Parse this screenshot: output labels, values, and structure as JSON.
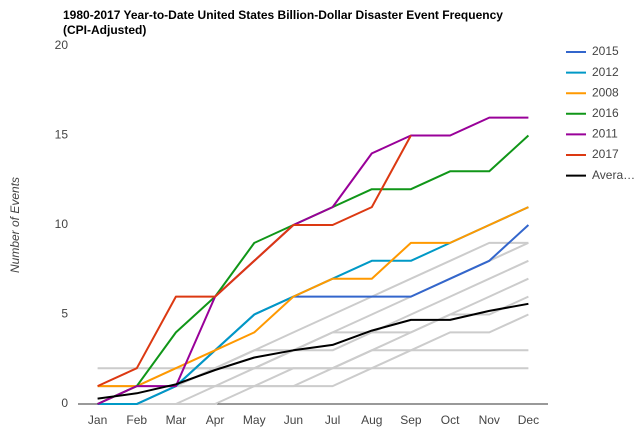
{
  "chart_data": {
    "type": "line",
    "title": [
      "1980-2017 Year-to-Date United States Billion-Dollar Disaster Event Frequency",
      "(CPI-Adjusted)"
    ],
    "y_label": "Number of Events",
    "categories": [
      "Jan",
      "Feb",
      "Mar",
      "Apr",
      "May",
      "Jun",
      "Jul",
      "Aug",
      "Sep",
      "Oct",
      "Nov",
      "Dec"
    ],
    "ylim": [
      0,
      20
    ],
    "yticks": [
      0,
      5,
      10,
      15,
      20
    ],
    "grid": false,
    "legend": "right",
    "background_color": "#cccccc",
    "background_series": [
      [
        0,
        0,
        1,
        1,
        2,
        3,
        4,
        5,
        6,
        7,
        8,
        9
      ],
      [
        0,
        1,
        1,
        2,
        3,
        4,
        5,
        6,
        7,
        8,
        9,
        9
      ],
      [
        1,
        1,
        1,
        2,
        2,
        3,
        3,
        4,
        5,
        6,
        7,
        8
      ],
      [
        0,
        0,
        0,
        1,
        1,
        2,
        2,
        3,
        4,
        5,
        6,
        7
      ],
      [
        2,
        2,
        2,
        2,
        2,
        2,
        2,
        3,
        3,
        3,
        3,
        3
      ],
      [
        0,
        0,
        1,
        1,
        1,
        1,
        1,
        2,
        2,
        2,
        2,
        2
      ],
      [
        0,
        0,
        0,
        0,
        1,
        1,
        2,
        2,
        3,
        4,
        4,
        5
      ],
      [
        1,
        1,
        2,
        2,
        3,
        3,
        4,
        4,
        4,
        5,
        5,
        6
      ]
    ],
    "series": [
      {
        "name": "2015",
        "color": "#3366cc",
        "values": [
          0,
          0,
          1,
          3,
          5,
          6,
          6,
          6,
          6,
          7,
          8,
          10
        ]
      },
      {
        "name": "2012",
        "color": "#0099c6",
        "values": [
          0,
          0,
          1,
          3,
          5,
          6,
          7,
          8,
          8,
          9,
          10,
          11
        ]
      },
      {
        "name": "2008",
        "color": "#ff9900",
        "values": [
          1,
          1,
          2,
          3,
          4,
          6,
          7,
          7,
          9,
          9,
          10,
          11
        ]
      },
      {
        "name": "2016",
        "color": "#109618",
        "values": [
          0,
          1,
          4,
          6,
          9,
          10,
          11,
          12,
          12,
          13,
          13,
          15
        ]
      },
      {
        "name": "2011",
        "color": "#990099",
        "values": [
          0,
          1,
          1,
          6,
          8,
          10,
          11,
          14,
          15,
          15,
          16,
          16
        ]
      },
      {
        "name": "2017",
        "color": "#dc3912",
        "values": [
          1,
          2,
          6,
          6,
          8,
          10,
          10,
          11,
          15,
          null,
          null,
          null
        ]
      },
      {
        "name": "Avera…",
        "color": "#000000",
        "values": [
          0.3,
          0.6,
          1.1,
          1.9,
          2.6,
          3.0,
          3.3,
          4.1,
          4.7,
          4.7,
          5.2,
          5.6
        ]
      }
    ]
  }
}
